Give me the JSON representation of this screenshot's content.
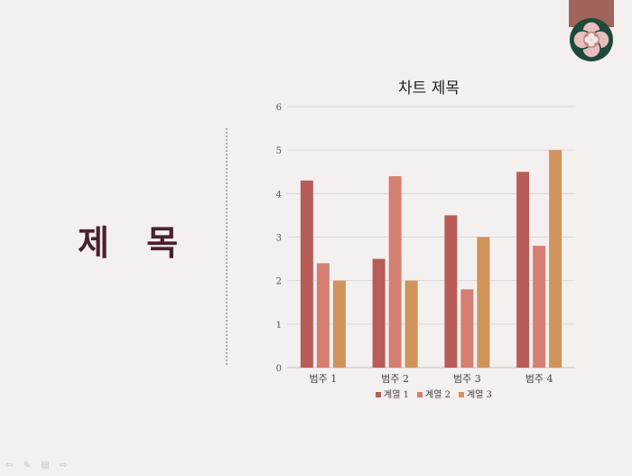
{
  "slide": {
    "title": "제 목"
  },
  "chart_data": {
    "type": "bar",
    "title": "차트 제목",
    "categories": [
      "범주 1",
      "범주 2",
      "범주 3",
      "범주 4"
    ],
    "series": [
      {
        "name": "계열 1",
        "values": [
          4.3,
          2.5,
          3.5,
          4.5
        ],
        "color": "#b85c58"
      },
      {
        "name": "계열 2",
        "values": [
          2.4,
          4.4,
          1.8,
          2.8
        ],
        "color": "#d47f72"
      },
      {
        "name": "계열 3",
        "values": [
          2.0,
          2.0,
          3.0,
          5.0
        ],
        "color": "#cf935b"
      }
    ],
    "ylim": [
      0,
      6
    ],
    "yticks": [
      "0",
      "1",
      "2",
      "3",
      "4",
      "5",
      "6"
    ],
    "grid": true,
    "legend": "bottom"
  },
  "colors": {
    "background": "#f4f0ef",
    "title": "#4a2030",
    "emblem_green": "#1e4a3a",
    "emblem_pink": "#e7bfc0",
    "emblem_ribbon": "#a0645c"
  },
  "controls": [
    "prev-arrow-icon",
    "pen-icon",
    "slides-icon",
    "next-arrow-icon"
  ]
}
